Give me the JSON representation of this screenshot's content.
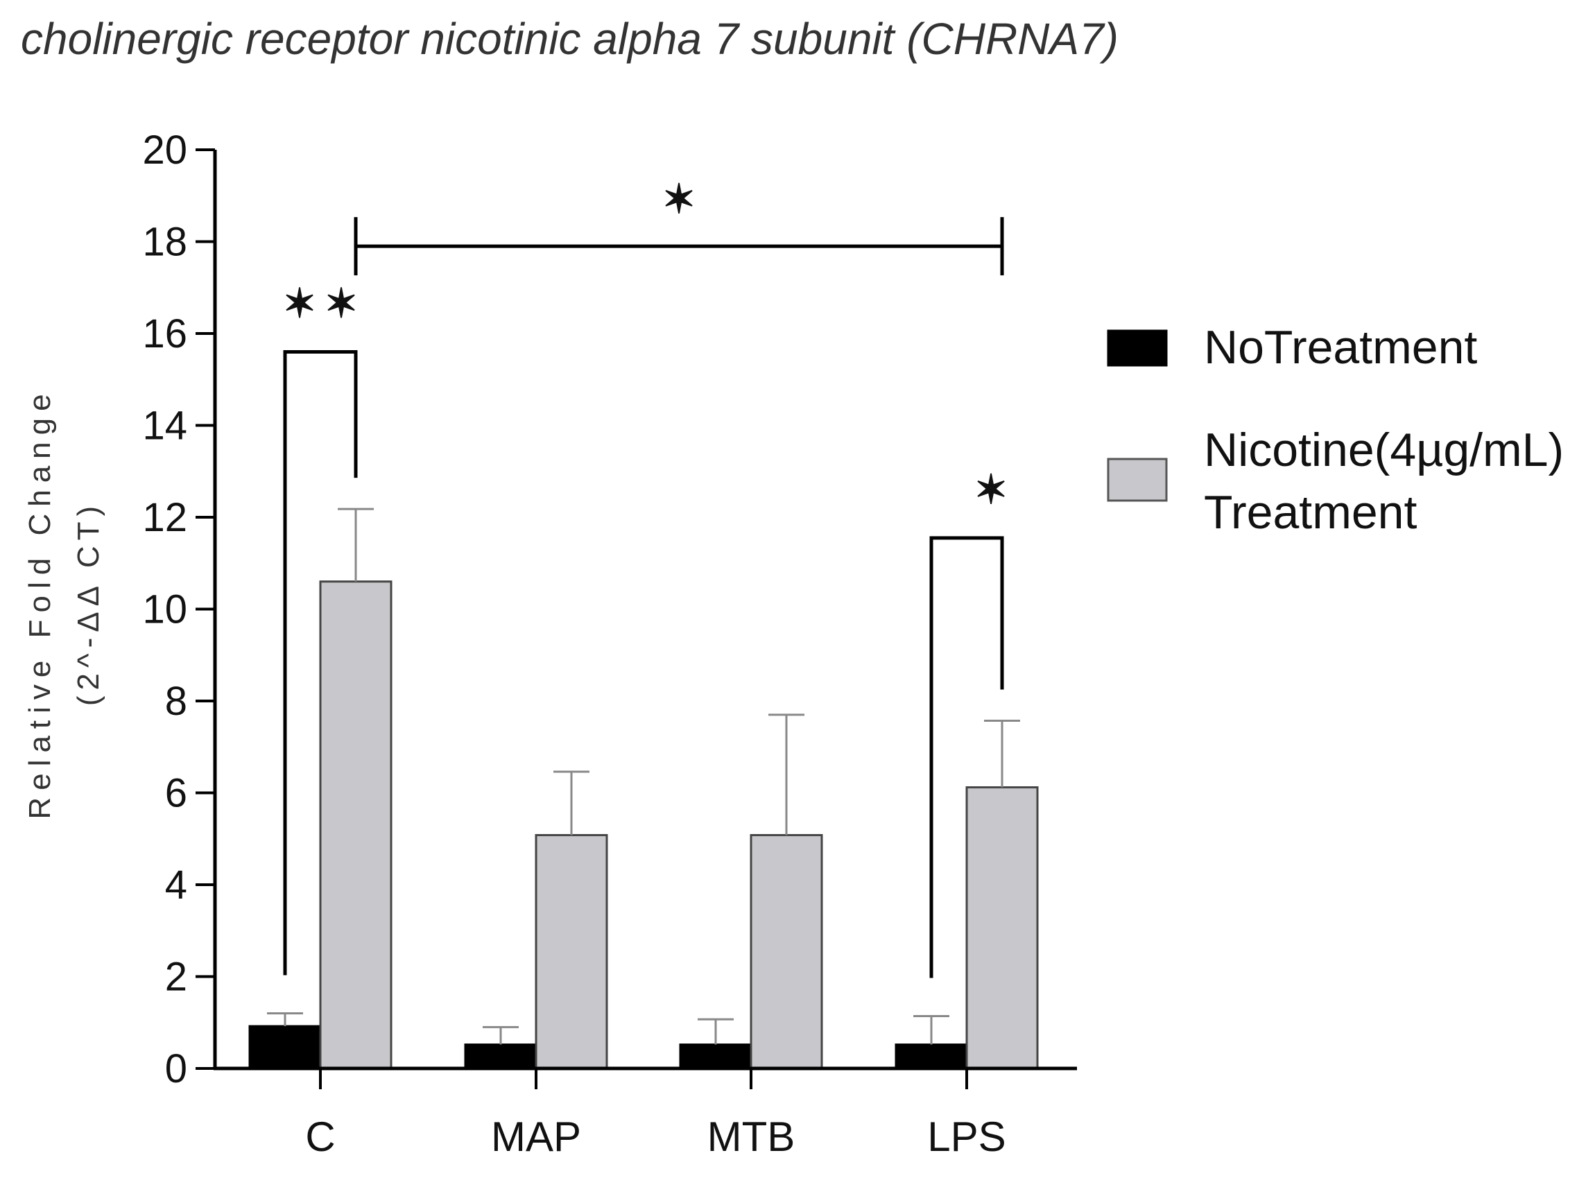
{
  "chart_data": {
    "type": "bar",
    "title": "cholinergic receptor nicotinic alpha 7 subunit (CHRNA7)",
    "ylabel_line1": "Relative Fold Change",
    "ylabel_line2": "(2^-ΔΔ CT)",
    "xlabel": "",
    "ylim": [
      0,
      20
    ],
    "yticks": [
      0,
      2,
      4,
      6,
      8,
      10,
      12,
      14,
      16,
      18,
      20
    ],
    "categories": [
      "C",
      "MAP",
      "MTB",
      "LPS"
    ],
    "series": [
      {
        "name": "NoTreatment",
        "color": "#000000",
        "values": [
          0.92,
          0.52,
          0.52,
          0.52
        ],
        "errors": [
          0.28,
          0.38,
          0.55,
          0.62
        ]
      },
      {
        "name": "Nicotine(4µg/mL) Treatment",
        "name_line1": "Nicotine(4µg/mL)",
        "name_line2": "Treatment",
        "color": "#c8c8cc",
        "values": [
          10.6,
          5.08,
          5.08,
          6.12
        ],
        "errors": [
          1.58,
          1.38,
          2.62,
          1.45
        ]
      }
    ],
    "significance": [
      {
        "label": "**",
        "category": "C",
        "type": "within",
        "y": 15.6
      },
      {
        "label": "*",
        "from": "C",
        "to": "LPS",
        "type": "between",
        "y": 17.9
      },
      {
        "label": "*",
        "category": "LPS",
        "type": "within",
        "y": 11.55
      }
    ],
    "legend_position": "right",
    "grid": false
  }
}
